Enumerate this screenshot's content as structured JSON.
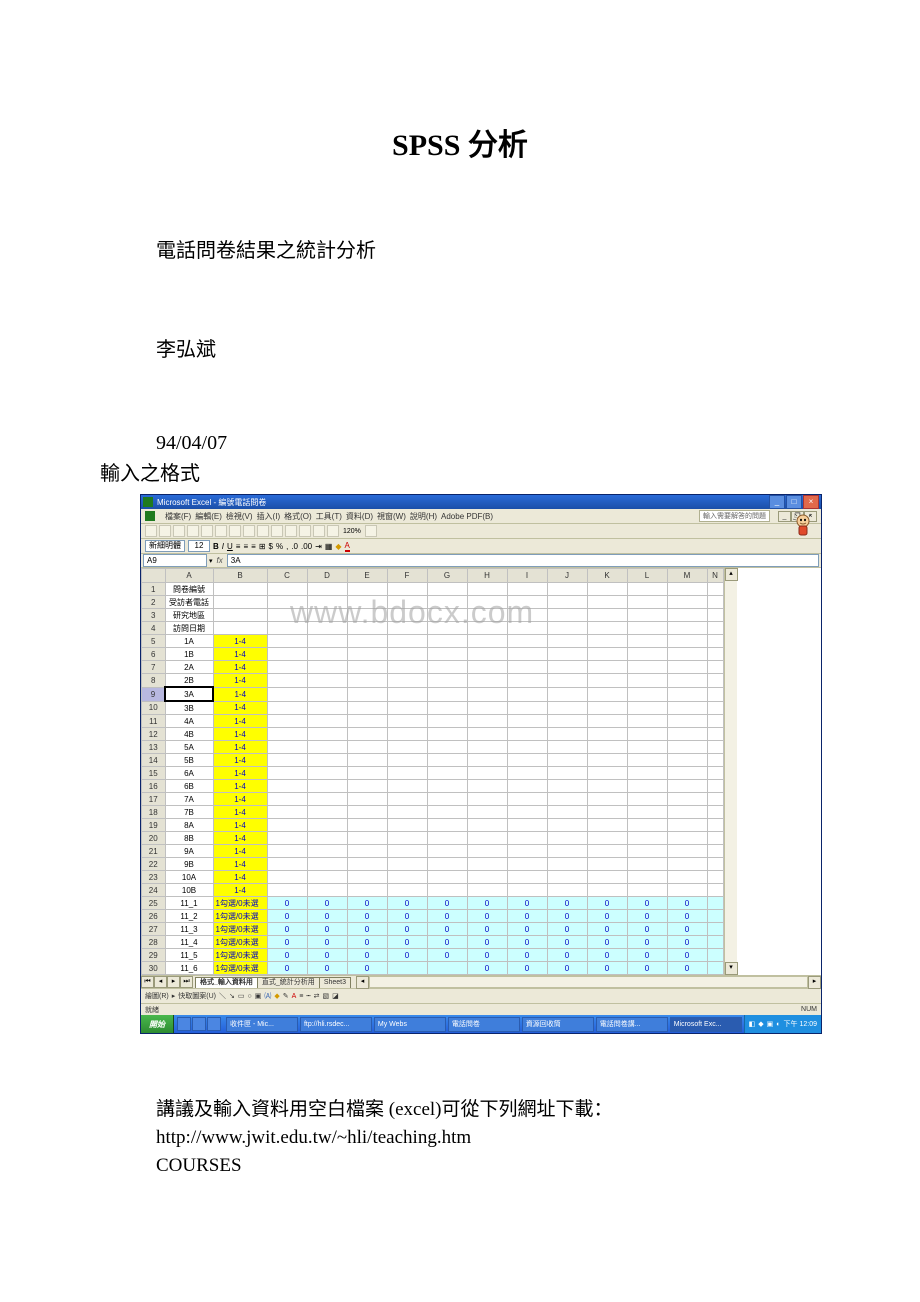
{
  "doc": {
    "title": "SPSS 分析",
    "line1": "電話問卷結果之統計分析",
    "line2": "李弘斌",
    "line3": "94/04/07",
    "line4": "輸入之格式",
    "below1": "講議及輸入資料用空白檔案 (excel)可從下列網址下載：",
    "below2": "http://www.jwit.edu.tw/~hli/teaching.htm",
    "below3": "COURSES"
  },
  "watermark": "www.bdocx.com",
  "excel": {
    "title": "Microsoft Excel - 編號電話問卷",
    "menus": [
      "檔案(F)",
      "編輯(E)",
      "檢視(V)",
      "插入(I)",
      "格式(O)",
      "工具(T)",
      "資料(D)",
      "視窗(W)",
      "說明(H)",
      "Adobe PDF(B)"
    ],
    "help_tip": "輸入需要解答的問題",
    "font_name": "新細明體",
    "font_size": "12",
    "name_box": "A9",
    "formula": "3A",
    "columns": [
      "A",
      "B",
      "C",
      "D",
      "E",
      "F",
      "G",
      "H",
      "I",
      "J",
      "K",
      "L",
      "M",
      "N"
    ],
    "col_widths": {
      "A": 48,
      "B": 54,
      "other": 40,
      "N": 16
    },
    "header_rows": [
      {
        "n": "1",
        "a": "問卷編號",
        "b": "",
        "type": "head"
      },
      {
        "n": "2",
        "a": "受訪者電話",
        "b": "",
        "type": "head"
      },
      {
        "n": "3",
        "a": "研究地區",
        "b": "",
        "type": "head"
      },
      {
        "n": "4",
        "a": "訪問日期",
        "b": "",
        "type": "head"
      }
    ],
    "yellow_rows": [
      {
        "n": "5",
        "a": "1A",
        "b": "1-4"
      },
      {
        "n": "6",
        "a": "1B",
        "b": "1-4"
      },
      {
        "n": "7",
        "a": "2A",
        "b": "1-4"
      },
      {
        "n": "8",
        "a": "2B",
        "b": "1-4"
      },
      {
        "n": "9",
        "a": "3A",
        "b": "1-4",
        "selected": true
      },
      {
        "n": "10",
        "a": "3B",
        "b": "1-4"
      },
      {
        "n": "11",
        "a": "4A",
        "b": "1-4"
      },
      {
        "n": "12",
        "a": "4B",
        "b": "1-4"
      },
      {
        "n": "13",
        "a": "5A",
        "b": "1-4"
      },
      {
        "n": "14",
        "a": "5B",
        "b": "1-4"
      },
      {
        "n": "15",
        "a": "6A",
        "b": "1-4"
      },
      {
        "n": "16",
        "a": "6B",
        "b": "1-4"
      },
      {
        "n": "17",
        "a": "7A",
        "b": "1-4"
      },
      {
        "n": "18",
        "a": "7B",
        "b": "1-4"
      },
      {
        "n": "19",
        "a": "8A",
        "b": "1-4"
      },
      {
        "n": "20",
        "a": "8B",
        "b": "1-4"
      },
      {
        "n": "21",
        "a": "9A",
        "b": "1-4"
      },
      {
        "n": "22",
        "a": "9B",
        "b": "1-4"
      },
      {
        "n": "23",
        "a": "10A",
        "b": "1-4"
      },
      {
        "n": "24",
        "a": "10B",
        "b": "1-4"
      }
    ],
    "cyan_rows": [
      {
        "n": "25",
        "a": "11_1",
        "b": "1勾選/0未選"
      },
      {
        "n": "26",
        "a": "11_2",
        "b": "1勾選/0未選"
      },
      {
        "n": "27",
        "a": "11_3",
        "b": "1勾選/0未選"
      },
      {
        "n": "28",
        "a": "11_4",
        "b": "1勾選/0未選"
      },
      {
        "n": "29",
        "a": "11_5",
        "b": "1勾選/0未選"
      },
      {
        "n": "30",
        "a": "11_6",
        "b": "1勾選/0未選"
      }
    ],
    "cyan_value": "0",
    "cyan_cols": 12,
    "tabs": [
      "格式_輸入資料用",
      "直式_統計分析用",
      "Sheet3"
    ],
    "active_tab": 0,
    "draw_label": "繪圖(R)",
    "draw_label2": "快取圖案(U)",
    "status_ready": "就緒",
    "status_num": "NUM"
  },
  "taskbar": {
    "start": "開始",
    "tasks": [
      "收件匣 - Mic...",
      "ftp://hli.rsdec...",
      "My Webs",
      "電話問卷",
      "資源回收筒",
      "電話問卷講...",
      "Microsoft Exc..."
    ],
    "active_task": 6,
    "time": "下午 12:09"
  },
  "colors": {
    "yellow": "#ffff00",
    "cyan": "#ccffff",
    "link": "#0000c6",
    "titlebar1": "#2a6bd8",
    "titlebar2": "#1b4fa8",
    "taskbar1": "#3b8bea",
    "taskbar2": "#245edb",
    "start1": "#49b84d",
    "start2": "#2e8b31"
  }
}
